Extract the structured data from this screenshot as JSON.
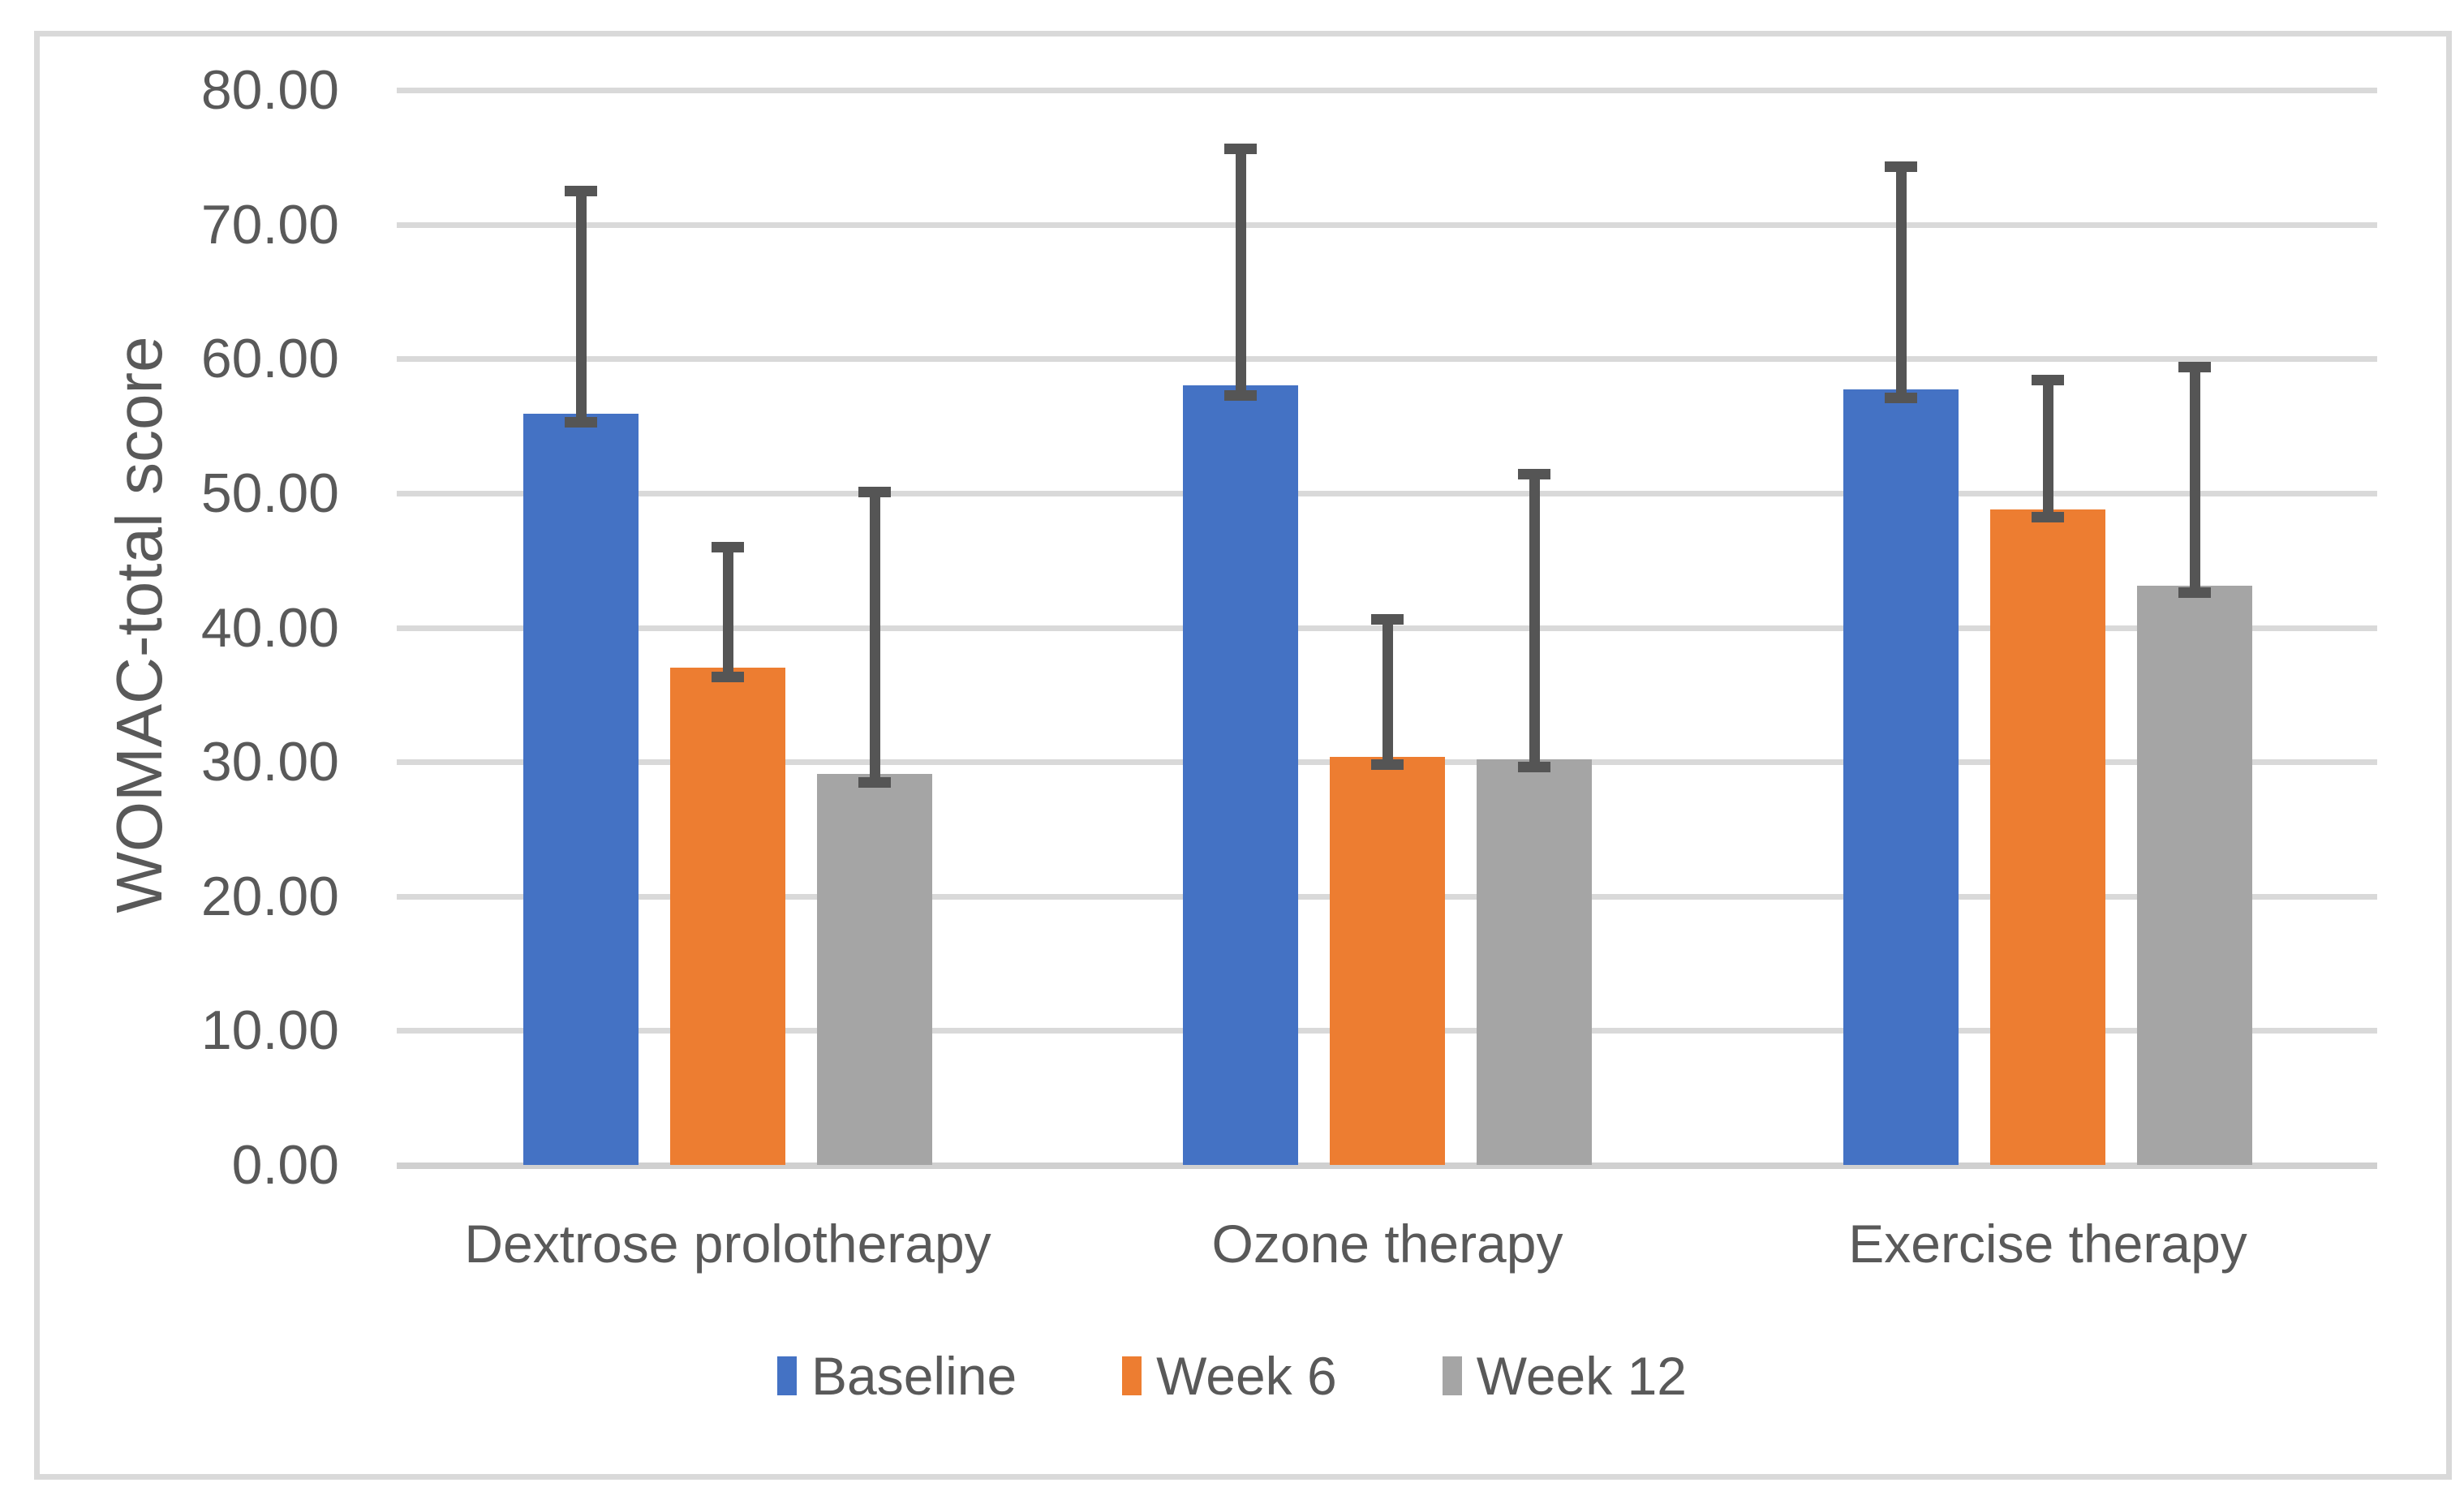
{
  "chart_data": {
    "type": "bar",
    "title": "",
    "xlabel": "",
    "ylabel": "WOMAC-total score",
    "ylim": [
      0,
      80
    ],
    "ytick_step": 10,
    "ytick_labels": [
      "0.00",
      "10.00",
      "20.00",
      "30.00",
      "40.00",
      "50.00",
      "60.00",
      "70.00",
      "80.00"
    ],
    "grid": true,
    "legend_position": "bottom",
    "error_bars": true,
    "categories": [
      "Dextrose prolotherapy",
      "Ozone therapy",
      "Exercise therapy"
    ],
    "series": [
      {
        "name": "Baseline",
        "color": "#4472C4",
        "values": [
          55.9,
          58.0,
          57.7
        ],
        "error_low": [
          54.9,
          56.9,
          56.7
        ],
        "error_high": [
          72.9,
          76.0,
          74.7
        ]
      },
      {
        "name": "Week 6",
        "color": "#ED7D31",
        "values": [
          37.0,
          30.4,
          48.8
        ],
        "error_low": [
          35.9,
          29.4,
          47.8
        ],
        "error_high": [
          46.4,
          41.0,
          58.8
        ]
      },
      {
        "name": "Week 12",
        "color": "#A5A5A5",
        "values": [
          29.1,
          30.2,
          43.1
        ],
        "error_low": [
          28.1,
          29.2,
          42.2
        ],
        "error_high": [
          50.5,
          51.8,
          59.8
        ]
      }
    ],
    "colors": {
      "gridline": "#D9D9D9",
      "axis_text": "#595959",
      "error_bar": "#555555",
      "plot_border": "#D9D9D9",
      "background": "#FFFFFF"
    }
  }
}
